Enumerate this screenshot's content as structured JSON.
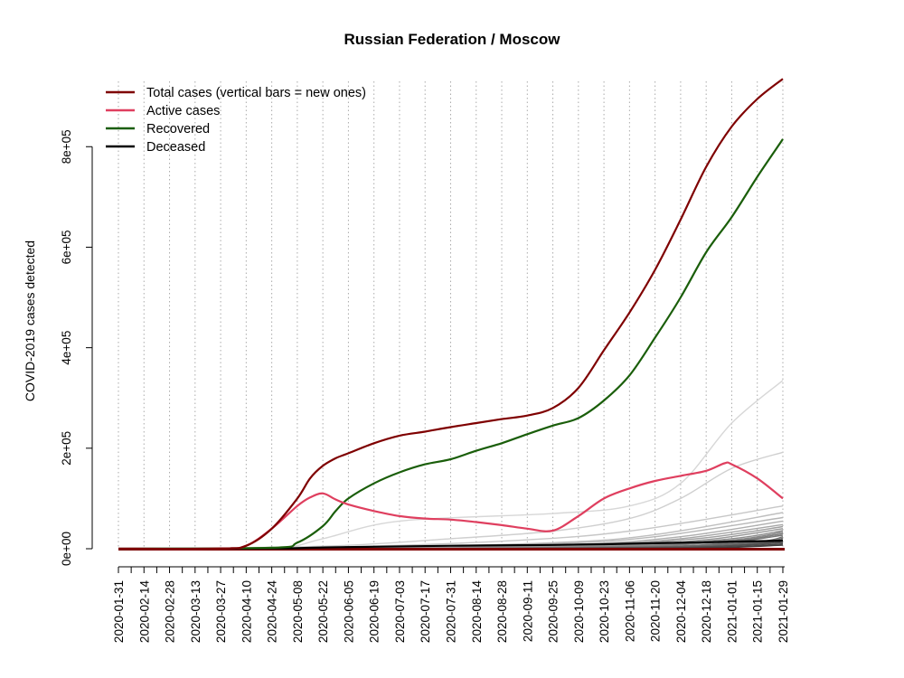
{
  "chart_data": {
    "type": "line",
    "title": "Russian Federation / Moscow",
    "xlabel": "",
    "ylabel": "COVID-2019 cases detected",
    "x_ticks": [
      "2020-01-31",
      "2020-02-14",
      "2020-02-28",
      "2020-03-13",
      "2020-03-27",
      "2020-04-10",
      "2020-04-24",
      "2020-05-08",
      "2020-05-22",
      "2020-06-05",
      "2020-06-19",
      "2020-07-03",
      "2020-07-17",
      "2020-07-31",
      "2020-08-14",
      "2020-08-28",
      "2020-09-11",
      "2020-09-25",
      "2020-10-09",
      "2020-10-23",
      "2020-11-06",
      "2020-11-20",
      "2020-12-04",
      "2020-12-18",
      "2021-01-01",
      "2021-01-15",
      "2021-01-29"
    ],
    "x_range": [
      "2020-01-31",
      "2021-01-30"
    ],
    "y_ticks": [
      0,
      200000,
      400000,
      600000,
      800000
    ],
    "y_tick_labels": [
      "0e+00",
      "2e+05",
      "4e+05",
      "6e+05",
      "8e+05"
    ],
    "ylim": [
      0,
      930000
    ],
    "grid": "dotted vertical lines every 14 days",
    "legend_position": "top-left",
    "legend": [
      {
        "label": "Total cases (vertical bars = new ones)",
        "color": "#7f0000"
      },
      {
        "label": "Active cases",
        "color": "#df3f5f"
      },
      {
        "label": "Recovered",
        "color": "#1a5e0a"
      },
      {
        "label": "Deceased",
        "color": "#000000"
      }
    ],
    "series": [
      {
        "name": "Total cases",
        "color": "#7f0000",
        "points": [
          [
            "2020-01-31",
            0
          ],
          [
            "2020-03-27",
            500
          ],
          [
            "2020-04-10",
            6000
          ],
          [
            "2020-04-24",
            40000
          ],
          [
            "2020-05-08",
            100000
          ],
          [
            "2020-05-15",
            140000
          ],
          [
            "2020-05-22",
            165000
          ],
          [
            "2020-05-29",
            180000
          ],
          [
            "2020-06-05",
            190000
          ],
          [
            "2020-06-19",
            210000
          ],
          [
            "2020-07-03",
            225000
          ],
          [
            "2020-07-17",
            233000
          ],
          [
            "2020-07-31",
            242000
          ],
          [
            "2020-08-14",
            250000
          ],
          [
            "2020-08-28",
            258000
          ],
          [
            "2020-09-11",
            265000
          ],
          [
            "2020-09-25",
            280000
          ],
          [
            "2020-10-09",
            320000
          ],
          [
            "2020-10-23",
            395000
          ],
          [
            "2020-11-06",
            470000
          ],
          [
            "2020-11-20",
            555000
          ],
          [
            "2020-12-04",
            655000
          ],
          [
            "2020-12-18",
            760000
          ],
          [
            "2021-01-01",
            840000
          ],
          [
            "2021-01-15",
            895000
          ],
          [
            "2021-01-29",
            935000
          ]
        ]
      },
      {
        "name": "Active cases",
        "color": "#df3f5f",
        "points": [
          [
            "2020-01-31",
            0
          ],
          [
            "2020-03-27",
            500
          ],
          [
            "2020-04-10",
            6000
          ],
          [
            "2020-04-24",
            40000
          ],
          [
            "2020-05-08",
            85000
          ],
          [
            "2020-05-15",
            102000
          ],
          [
            "2020-05-22",
            110000
          ],
          [
            "2020-05-29",
            98000
          ],
          [
            "2020-06-05",
            88000
          ],
          [
            "2020-06-19",
            75000
          ],
          [
            "2020-07-03",
            65000
          ],
          [
            "2020-07-17",
            60000
          ],
          [
            "2020-07-31",
            58000
          ],
          [
            "2020-08-14",
            53000
          ],
          [
            "2020-08-28",
            47000
          ],
          [
            "2020-09-11",
            40000
          ],
          [
            "2020-09-25",
            36000
          ],
          [
            "2020-10-09",
            65000
          ],
          [
            "2020-10-23",
            100000
          ],
          [
            "2020-11-06",
            120000
          ],
          [
            "2020-11-20",
            135000
          ],
          [
            "2020-12-04",
            145000
          ],
          [
            "2020-12-18",
            155000
          ],
          [
            "2020-12-28",
            170000
          ],
          [
            "2021-01-01",
            168000
          ],
          [
            "2021-01-15",
            140000
          ],
          [
            "2021-01-29",
            100000
          ]
        ]
      },
      {
        "name": "Recovered",
        "color": "#1a5e0a",
        "points": [
          [
            "2020-01-31",
            0
          ],
          [
            "2020-04-24",
            2000
          ],
          [
            "2020-05-08",
            12000
          ],
          [
            "2020-05-22",
            45000
          ],
          [
            "2020-05-29",
            75000
          ],
          [
            "2020-06-05",
            100000
          ],
          [
            "2020-06-19",
            130000
          ],
          [
            "2020-07-03",
            152000
          ],
          [
            "2020-07-17",
            168000
          ],
          [
            "2020-07-31",
            178000
          ],
          [
            "2020-08-14",
            195000
          ],
          [
            "2020-08-28",
            210000
          ],
          [
            "2020-09-11",
            228000
          ],
          [
            "2020-09-25",
            245000
          ],
          [
            "2020-10-09",
            260000
          ],
          [
            "2020-10-23",
            295000
          ],
          [
            "2020-11-06",
            345000
          ],
          [
            "2020-11-20",
            420000
          ],
          [
            "2020-12-04",
            500000
          ],
          [
            "2020-12-18",
            590000
          ],
          [
            "2021-01-01",
            660000
          ],
          [
            "2021-01-15",
            740000
          ],
          [
            "2021-01-29",
            815000
          ]
        ]
      },
      {
        "name": "Deceased",
        "color": "#000000",
        "points": [
          [
            "2020-01-31",
            0
          ],
          [
            "2020-04-24",
            500
          ],
          [
            "2020-05-22",
            2500
          ],
          [
            "2020-06-19",
            4000
          ],
          [
            "2020-07-31",
            6000
          ],
          [
            "2020-09-25",
            7500
          ],
          [
            "2020-11-06",
            10000
          ],
          [
            "2020-12-18",
            13000
          ],
          [
            "2021-01-29",
            16000
          ]
        ]
      }
    ],
    "background_region_series": [
      [
        [
          "2020-01-31",
          0
        ],
        [
          "2020-04-24",
          1000
        ],
        [
          "2020-05-22",
          20000
        ],
        [
          "2020-07-03",
          55000
        ],
        [
          "2020-09-25",
          70000
        ],
        [
          "2020-11-06",
          85000
        ],
        [
          "2020-12-04",
          130000
        ],
        [
          "2021-01-01",
          250000
        ],
        [
          "2021-01-29",
          335000
        ]
      ],
      [
        [
          "2020-01-31",
          0
        ],
        [
          "2020-05-22",
          5000
        ],
        [
          "2020-07-31",
          20000
        ],
        [
          "2020-09-25",
          35000
        ],
        [
          "2020-11-06",
          60000
        ],
        [
          "2020-12-04",
          100000
        ],
        [
          "2021-01-01",
          160000
        ],
        [
          "2021-01-29",
          192000
        ]
      ],
      [
        [
          "2020-01-31",
          0
        ],
        [
          "2020-05-22",
          3000
        ],
        [
          "2020-08-28",
          15000
        ],
        [
          "2020-11-06",
          35000
        ],
        [
          "2021-01-29",
          85000
        ]
      ],
      [
        [
          "2020-01-31",
          0
        ],
        [
          "2020-06-05",
          2500
        ],
        [
          "2020-09-25",
          12000
        ],
        [
          "2020-11-20",
          28000
        ],
        [
          "2021-01-29",
          72000
        ]
      ],
      [
        [
          "2020-01-31",
          0
        ],
        [
          "2020-06-05",
          2000
        ],
        [
          "2020-09-25",
          10000
        ],
        [
          "2020-11-20",
          24000
        ],
        [
          "2021-01-29",
          62000
        ]
      ],
      [
        [
          "2020-01-31",
          0
        ],
        [
          "2020-06-19",
          1500
        ],
        [
          "2020-10-09",
          9000
        ],
        [
          "2020-12-04",
          24000
        ],
        [
          "2021-01-29",
          55000
        ]
      ],
      [
        [
          "2020-01-31",
          0
        ],
        [
          "2020-06-19",
          1200
        ],
        [
          "2020-10-09",
          8000
        ],
        [
          "2020-12-04",
          20000
        ],
        [
          "2021-01-29",
          48000
        ]
      ],
      [
        [
          "2020-01-31",
          0
        ],
        [
          "2020-07-03",
          1000
        ],
        [
          "2020-10-23",
          8000
        ],
        [
          "2020-12-18",
          22000
        ],
        [
          "2021-01-29",
          44000
        ]
      ],
      [
        [
          "2020-01-31",
          0
        ],
        [
          "2020-07-03",
          800
        ],
        [
          "2020-10-23",
          6000
        ],
        [
          "2020-12-18",
          18000
        ],
        [
          "2021-01-29",
          40000
        ]
      ],
      [
        [
          "2020-01-31",
          0
        ],
        [
          "2020-07-17",
          700
        ],
        [
          "2020-11-06",
          6000
        ],
        [
          "2021-01-01",
          20000
        ],
        [
          "2021-01-29",
          36000
        ]
      ],
      [
        [
          "2020-01-31",
          0
        ],
        [
          "2020-07-17",
          600
        ],
        [
          "2020-11-06",
          5000
        ],
        [
          "2021-01-01",
          17000
        ],
        [
          "2021-01-29",
          33000
        ]
      ],
      [
        [
          "2020-01-31",
          0
        ],
        [
          "2020-07-31",
          500
        ],
        [
          "2020-11-06",
          4000
        ],
        [
          "2021-01-01",
          15000
        ],
        [
          "2021-01-29",
          30000
        ]
      ],
      [
        [
          "2020-01-31",
          0
        ],
        [
          "2020-07-31",
          400
        ],
        [
          "2020-11-20",
          4000
        ],
        [
          "2021-01-01",
          13000
        ],
        [
          "2021-01-29",
          27000
        ]
      ],
      [
        [
          "2020-01-31",
          0
        ],
        [
          "2020-08-14",
          400
        ],
        [
          "2020-11-20",
          3500
        ],
        [
          "2021-01-15",
          14000
        ],
        [
          "2021-01-29",
          24000
        ]
      ],
      [
        [
          "2020-01-31",
          0
        ],
        [
          "2020-08-14",
          300
        ],
        [
          "2020-11-20",
          3000
        ],
        [
          "2021-01-15",
          12000
        ],
        [
          "2021-01-29",
          21000
        ]
      ],
      [
        [
          "2020-01-31",
          0
        ],
        [
          "2020-08-28",
          300
        ],
        [
          "2020-12-04",
          3000
        ],
        [
          "2021-01-15",
          10000
        ],
        [
          "2021-01-29",
          18000
        ]
      ],
      [
        [
          "2020-01-31",
          0
        ],
        [
          "2020-08-28",
          200
        ],
        [
          "2020-12-04",
          2500
        ],
        [
          "2021-01-15",
          8500
        ],
        [
          "2021-01-29",
          15000
        ]
      ],
      [
        [
          "2020-01-31",
          0
        ],
        [
          "2020-09-11",
          200
        ],
        [
          "2020-12-04",
          2000
        ],
        [
          "2021-01-29",
          12000
        ]
      ],
      [
        [
          "2020-01-31",
          0
        ],
        [
          "2020-09-11",
          150
        ],
        [
          "2020-12-18",
          2000
        ],
        [
          "2021-01-29",
          9500
        ]
      ],
      [
        [
          "2020-01-31",
          0
        ],
        [
          "2020-09-25",
          100
        ],
        [
          "2020-12-18",
          1500
        ],
        [
          "2021-01-29",
          7000
        ]
      ]
    ]
  }
}
